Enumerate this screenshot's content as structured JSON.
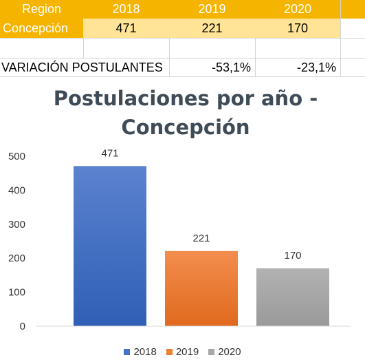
{
  "table": {
    "header": [
      "Region",
      "2018",
      "2019",
      "2020"
    ],
    "row": [
      "Concepción",
      "471",
      "221",
      "170"
    ],
    "variation_label": "VARIACIÓN POSTULANTES",
    "variation_values": [
      "-53,1%",
      "-23,1%"
    ]
  },
  "chart_data": {
    "type": "bar",
    "title": "Postulaciones por año - Concepción",
    "title_line1": "Postulaciones por año -",
    "title_line2": "Concepción",
    "categories": [
      "2018",
      "2019",
      "2020"
    ],
    "values": [
      471,
      221,
      170
    ],
    "colors": [
      "#4a72c4",
      "#ed7d31",
      "#a5a5a5"
    ],
    "ylim": [
      0,
      500
    ],
    "yticks": [
      "0",
      "100",
      "200",
      "300",
      "400",
      "500"
    ],
    "legend": [
      "2018",
      "2019",
      "2020"
    ],
    "legend_position": "bottom",
    "grid": false
  }
}
